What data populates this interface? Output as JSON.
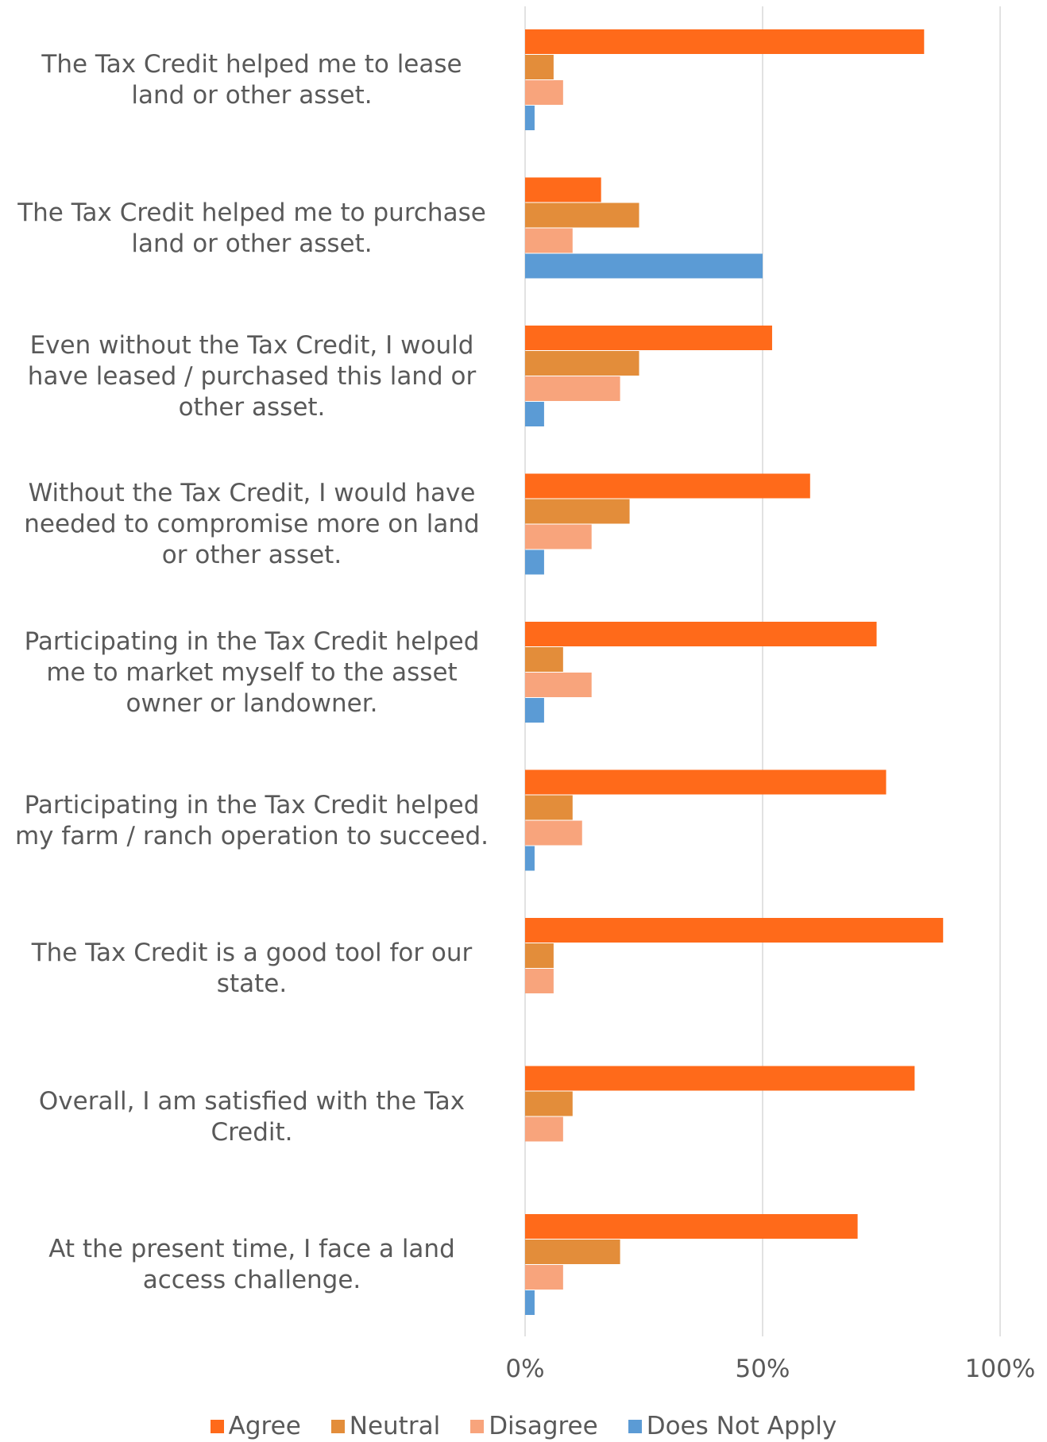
{
  "chart_data": {
    "type": "bar",
    "orientation": "horizontal",
    "categories": [
      "The Tax Credit helped me to lease land or other asset.",
      "The Tax Credit helped me to purchase land or other asset.",
      "Even without the Tax Credit, I would have leased / purchased this land or other asset.",
      "Without the Tax Credit, I would have needed to compromise more on land or other asset.",
      "Participating in the Tax Credit helped me to market myself to the asset owner or landowner.",
      "Participating in the Tax Credit helped my farm / ranch operation to succeed.",
      "The Tax Credit is a good tool for our state.",
      "Overall, I am satisfied with the Tax Credit.",
      "At the present time, I face a land access challenge."
    ],
    "category_lines": [
      [
        "The Tax Credit helped me to lease",
        "land or other asset."
      ],
      [
        "The Tax Credit helped me to purchase",
        "land or other asset."
      ],
      [
        "Even without the Tax Credit, I would",
        "have leased / purchased this land or",
        "other asset."
      ],
      [
        "Without the Tax Credit, I would have",
        "needed to compromise more on land",
        "or other asset."
      ],
      [
        "Participating in the Tax Credit helped",
        "me to market myself to the asset",
        "owner or landowner."
      ],
      [
        "Participating in the Tax Credit helped",
        "my farm / ranch operation to succeed."
      ],
      [
        "The Tax Credit is a good tool for our",
        "state."
      ],
      [
        "Overall, I am satisfied with the Tax",
        "Credit."
      ],
      [
        "At the present time, I face a land",
        "access challenge."
      ]
    ],
    "series": [
      {
        "name": "Agree",
        "color": "#FF6A1A",
        "values": [
          84,
          16,
          52,
          60,
          74,
          76,
          88,
          82,
          70
        ]
      },
      {
        "name": "Neutral",
        "color": "#E38D3A",
        "values": [
          6,
          24,
          24,
          22,
          8,
          10,
          6,
          10,
          20
        ]
      },
      {
        "name": "Disagree",
        "color": "#F8A47C",
        "values": [
          8,
          10,
          20,
          14,
          14,
          12,
          6,
          8,
          8
        ]
      },
      {
        "name": "Does Not Apply",
        "color": "#5B9BD5",
        "values": [
          2,
          50,
          4,
          4,
          4,
          2,
          0,
          0,
          2
        ]
      }
    ],
    "xlim": [
      0,
      100
    ],
    "xticks": [
      "0%",
      "50%",
      "100%"
    ],
    "grid": true,
    "legend_position": "bottom"
  }
}
